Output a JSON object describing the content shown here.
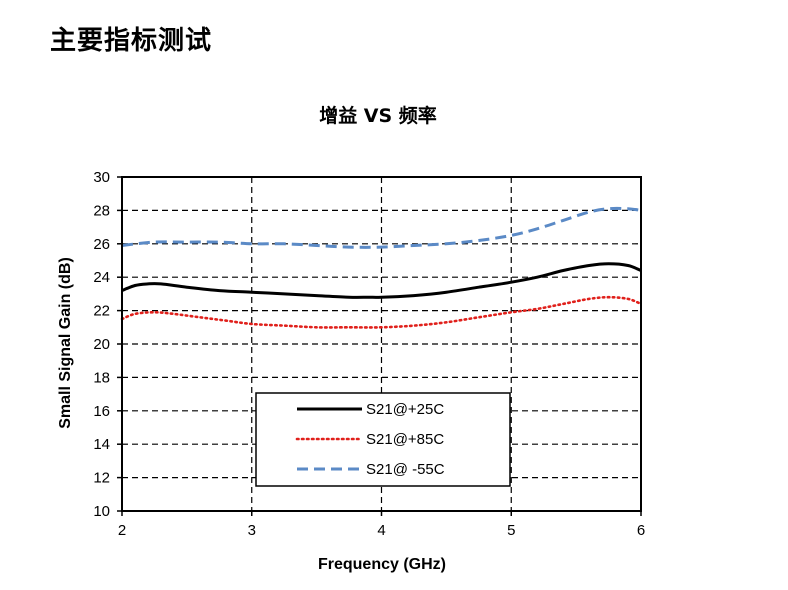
{
  "page": {
    "heading": "主要指标测试"
  },
  "chart_data": {
    "type": "line",
    "title": "增益 VS 频率",
    "xlabel": "Frequency (GHz)",
    "ylabel": "Small Signal Gain (dB)",
    "xlim": [
      2,
      6
    ],
    "ylim": [
      10,
      30
    ],
    "xticks": [
      2,
      3,
      4,
      5,
      6
    ],
    "yticks": [
      10,
      12,
      14,
      16,
      18,
      20,
      22,
      24,
      26,
      28,
      30
    ],
    "grid": true,
    "legend_position": "bottom-center",
    "series": [
      {
        "name": "S21@+25C",
        "color": "#000000",
        "line_style": "solid",
        "x": [
          2.0,
          2.1,
          2.2,
          2.3,
          2.5,
          2.75,
          3.0,
          3.25,
          3.5,
          3.75,
          3.9,
          4.0,
          4.25,
          4.5,
          4.75,
          5.0,
          5.2,
          5.4,
          5.6,
          5.75,
          5.9,
          6.0
        ],
        "y": [
          23.2,
          23.5,
          23.6,
          23.6,
          23.4,
          23.2,
          23.1,
          23.0,
          22.9,
          22.8,
          22.8,
          22.8,
          22.9,
          23.1,
          23.4,
          23.7,
          24.0,
          24.4,
          24.7,
          24.8,
          24.7,
          24.4
        ]
      },
      {
        "name": "S21@+85C",
        "color": "#e0201b",
        "line_style": "dotted",
        "x": [
          2.0,
          2.1,
          2.25,
          2.4,
          2.6,
          2.8,
          3.0,
          3.25,
          3.5,
          3.75,
          4.0,
          4.25,
          4.5,
          4.75,
          5.0,
          5.2,
          5.4,
          5.6,
          5.75,
          5.9,
          6.0
        ],
        "y": [
          21.5,
          21.8,
          21.9,
          21.8,
          21.6,
          21.4,
          21.2,
          21.1,
          21.0,
          21.0,
          21.0,
          21.1,
          21.3,
          21.6,
          21.9,
          22.1,
          22.4,
          22.7,
          22.8,
          22.7,
          22.4
        ]
      },
      {
        "name": "S21@ -55C",
        "color": "#5b8ac6",
        "line_style": "dashed",
        "x": [
          2.0,
          2.25,
          2.5,
          2.75,
          3.0,
          3.25,
          3.5,
          3.75,
          4.0,
          4.25,
          4.5,
          4.75,
          5.0,
          5.2,
          5.4,
          5.6,
          5.75,
          5.9,
          6.0
        ],
        "y": [
          25.9,
          26.1,
          26.1,
          26.1,
          26.0,
          26.0,
          25.9,
          25.8,
          25.8,
          25.9,
          26.0,
          26.2,
          26.5,
          26.9,
          27.4,
          27.9,
          28.1,
          28.1,
          28.0
        ]
      }
    ]
  }
}
